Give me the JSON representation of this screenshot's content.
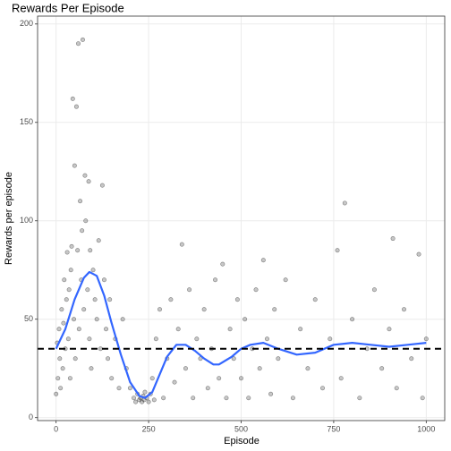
{
  "chart_data": {
    "type": "scatter",
    "title": "Rewards Per Episode",
    "x_label": "Episode",
    "y_label": "Rewards per episode",
    "xlim": [
      -50,
      1050
    ],
    "ylim": [
      -1.5,
      204
    ],
    "xticks": [
      0,
      250,
      500,
      750,
      1000
    ],
    "yticks": [
      0,
      50,
      100,
      150,
      200
    ],
    "grid": true,
    "color": "#000000",
    "x": [
      0,
      3,
      5,
      8,
      10,
      12,
      15,
      18,
      20,
      22,
      25,
      28,
      30,
      33,
      35,
      38,
      40,
      42,
      45,
      48,
      50,
      52,
      55,
      58,
      60,
      62,
      65,
      68,
      70,
      72,
      75,
      78,
      80,
      85,
      88,
      90,
      92,
      95,
      100,
      105,
      110,
      115,
      120,
      125,
      130,
      135,
      140,
      145,
      150,
      160,
      170,
      180,
      190,
      200,
      210,
      215,
      220,
      225,
      228,
      232,
      235,
      238,
      240,
      245,
      250,
      255,
      260,
      265,
      270,
      280,
      290,
      300,
      310,
      320,
      330,
      340,
      350,
      360,
      370,
      380,
      390,
      400,
      410,
      420,
      430,
      440,
      450,
      460,
      470,
      480,
      490,
      500,
      510,
      520,
      530,
      540,
      550,
      560,
      570,
      580,
      590,
      600,
      620,
      640,
      660,
      680,
      700,
      720,
      740,
      760,
      770,
      780,
      800,
      820,
      840,
      860,
      880,
      900,
      910,
      920,
      940,
      960,
      980,
      990,
      1000
    ],
    "y": [
      12,
      38,
      20,
      45,
      30,
      15,
      55,
      25,
      48,
      70,
      35,
      60,
      84,
      40,
      65,
      20,
      75,
      87,
      162,
      50,
      128,
      30,
      158,
      85,
      190,
      45,
      110,
      70,
      95,
      192,
      55,
      123,
      100,
      65,
      120,
      40,
      85,
      25,
      75,
      60,
      50,
      90,
      35,
      118,
      70,
      45,
      30,
      60,
      20,
      40,
      15,
      50,
      25,
      15,
      10,
      8,
      12,
      9,
      10,
      8,
      11,
      9,
      13,
      10,
      8,
      12,
      20,
      9,
      40,
      55,
      10,
      30,
      60,
      18,
      45,
      88,
      25,
      65,
      10,
      40,
      30,
      55,
      15,
      35,
      70,
      20,
      78,
      10,
      45,
      30,
      60,
      20,
      50,
      10,
      35,
      65,
      25,
      80,
      40,
      12,
      55,
      30,
      70,
      10,
      45,
      25,
      60,
      15,
      40,
      85,
      20,
      109,
      50,
      10,
      35,
      65,
      25,
      45,
      91,
      15,
      55,
      30,
      83,
      10,
      40
    ],
    "smooth": {
      "color": "#3366ff",
      "x": [
        0,
        25,
        50,
        75,
        90,
        110,
        130,
        150,
        175,
        200,
        225,
        240,
        260,
        280,
        300,
        325,
        350,
        375,
        400,
        425,
        440,
        475,
        500,
        525,
        560,
        600,
        650,
        700,
        750,
        800,
        850,
        900,
        950,
        1000
      ],
      "y": [
        35,
        45,
        60,
        71,
        74,
        72,
        62,
        48,
        32,
        18,
        11,
        10,
        13,
        22,
        31,
        37,
        37,
        34,
        30,
        27,
        27,
        31,
        35,
        37,
        38,
        35,
        32,
        33,
        37,
        38,
        37,
        36,
        37,
        38
      ]
    },
    "hline": 35
  }
}
